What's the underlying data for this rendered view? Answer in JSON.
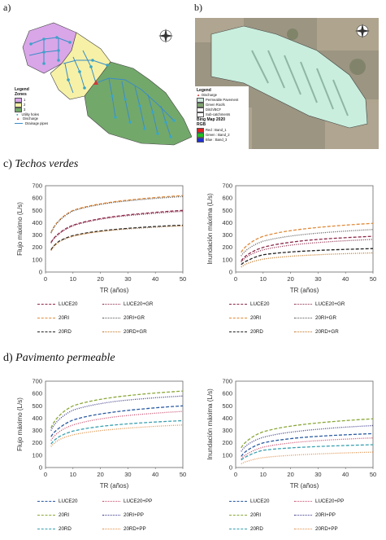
{
  "panels": {
    "a": "a)",
    "b": "b)",
    "c": "c)",
    "c_title": "Techos verdes",
    "d": "d)",
    "d_title": "Pavimento permeable"
  },
  "map_a": {
    "legend_title": "Legend",
    "zones_title": "Zones",
    "zones": [
      {
        "label": "1",
        "color": "#d9a6e8"
      },
      {
        "label": "2",
        "color": "#f6f1a6"
      },
      {
        "label": "3",
        "color": "#73a86b"
      }
    ],
    "utility_holes": "Utility holes",
    "discharge": "Discharge",
    "drainage_pipes": "Drainage pipes"
  },
  "map_b": {
    "legend_title": "Legend",
    "items": [
      {
        "label": "Discharge",
        "color": "#d13a3a"
      },
      {
        "label": "Permeable Pavement",
        "color": "#cfe8df"
      },
      {
        "label": "Green Roofs",
        "color": "#7fa36f"
      },
      {
        "label": "Ditch/BCF",
        "color": "#ffffff"
      },
      {
        "label": "Sub-catchments",
        "color": "#ffffff"
      }
    ],
    "basemap": "Bing Map 2020",
    "rgb_title": "RGB",
    "bands": [
      {
        "label": "Red : Band_1",
        "color": "#e02020"
      },
      {
        "label": "Green : Band_2",
        "color": "#20c020"
      },
      {
        "label": "Blue : Band_3",
        "color": "#2030d0"
      }
    ]
  },
  "chart_data": [
    {
      "type": "line",
      "id": "c-left",
      "xlabel": "TR (años)",
      "ylabel": "Flujo máximo (L/s)",
      "xlim": [
        0,
        50
      ],
      "ylim": [
        0,
        700
      ],
      "xticks": [
        "0",
        "10",
        "20",
        "30",
        "40",
        "50"
      ],
      "yticks": [
        "0",
        "100",
        "200",
        "300",
        "400",
        "500",
        "600",
        "700"
      ],
      "x": [
        2,
        5,
        10,
        25,
        50
      ],
      "series": [
        {
          "name": "LUCE20",
          "color": "#8b2a4a",
          "dash": "4,2",
          "values": [
            240,
            315,
            380,
            450,
            500
          ]
        },
        {
          "name": "LUCE20+GR",
          "color": "#8b2a4a",
          "dash": "1,1.5",
          "values": [
            235,
            310,
            375,
            445,
            492
          ]
        },
        {
          "name": "20RI",
          "color": "#e08a3a",
          "dash": "4,2",
          "values": [
            320,
            420,
            500,
            570,
            620
          ]
        },
        {
          "name": "20RI+GR",
          "color": "#555555",
          "dash": "1,1.5",
          "values": [
            315,
            415,
            495,
            565,
            612
          ]
        },
        {
          "name": "20RD",
          "color": "#222222",
          "dash": "4,2",
          "values": [
            180,
            250,
            295,
            345,
            380
          ]
        },
        {
          "name": "20RD+GR",
          "color": "#c0741f",
          "dash": "1,1.5",
          "values": [
            175,
            245,
            290,
            340,
            375
          ]
        }
      ]
    },
    {
      "type": "line",
      "id": "c-right",
      "xlabel": "TR (años)",
      "ylabel": "Inundación máxima (L/s)",
      "xlim": [
        0,
        50
      ],
      "ylim": [
        0,
        700
      ],
      "xticks": [
        "0",
        "10",
        "20",
        "30",
        "40",
        "50"
      ],
      "yticks": [
        "0",
        "100",
        "200",
        "300",
        "400",
        "500",
        "600",
        "700"
      ],
      "x": [
        2,
        5,
        10,
        25,
        50
      ],
      "series": [
        {
          "name": "LUCE20",
          "color": "#8b2a4a",
          "dash": "4,2",
          "values": [
            90,
            150,
            200,
            255,
            290
          ]
        },
        {
          "name": "LUCE20+GR",
          "color": "#8b2a4a",
          "dash": "1,1.5",
          "values": [
            80,
            135,
            180,
            230,
            265
          ]
        },
        {
          "name": "20RI",
          "color": "#e08a3a",
          "dash": "4,2",
          "values": [
            160,
            230,
            290,
            350,
            395
          ]
        },
        {
          "name": "20RI+GR",
          "color": "#555555",
          "dash": "1,1.5",
          "values": [
            130,
            195,
            250,
            305,
            345
          ]
        },
        {
          "name": "20RD",
          "color": "#222222",
          "dash": "4,2",
          "values": [
            60,
            100,
            140,
            170,
            190
          ]
        },
        {
          "name": "20RD+GR",
          "color": "#c0741f",
          "dash": "1,1.5",
          "values": [
            40,
            75,
            105,
            135,
            155
          ]
        }
      ]
    },
    {
      "type": "line",
      "id": "d-left",
      "xlabel": "TR (años)",
      "ylabel": "Flujo máximo (L/s)",
      "xlim": [
        0,
        50
      ],
      "ylim": [
        0,
        700
      ],
      "xticks": [
        "0",
        "10",
        "20",
        "30",
        "40",
        "50"
      ],
      "yticks": [
        "0",
        "100",
        "200",
        "300",
        "400",
        "500",
        "600",
        "700"
      ],
      "x": [
        2,
        5,
        10,
        25,
        50
      ],
      "series": [
        {
          "name": "LUCE20",
          "color": "#2a5aa0",
          "dash": "4,2",
          "values": [
            250,
            320,
            385,
            450,
            500
          ]
        },
        {
          "name": "LUCE20+PP",
          "color": "#c84a6a",
          "dash": "1,1.5",
          "values": [
            220,
            290,
            345,
            410,
            455
          ]
        },
        {
          "name": "20RI",
          "color": "#8aa83a",
          "dash": "4,2",
          "values": [
            320,
            420,
            500,
            570,
            620
          ]
        },
        {
          "name": "20RI+PP",
          "color": "#3a3a8a",
          "dash": "1,1.5",
          "values": [
            300,
            390,
            465,
            535,
            580
          ]
        },
        {
          "name": "20RD",
          "color": "#3aa0b0",
          "dash": "4,2",
          "values": [
            190,
            250,
            295,
            345,
            380
          ]
        },
        {
          "name": "20RD+PP",
          "color": "#e0904a",
          "dash": "1,1.5",
          "values": [
            170,
            225,
            265,
            310,
            345
          ]
        }
      ]
    },
    {
      "type": "line",
      "id": "d-right",
      "xlabel": "TR (años)",
      "ylabel": "Inundación máxima (L/s)",
      "xlim": [
        0,
        50
      ],
      "ylim": [
        0,
        700
      ],
      "xticks": [
        "0",
        "10",
        "20",
        "30",
        "40",
        "50"
      ],
      "yticks": [
        "0",
        "100",
        "200",
        "300",
        "400",
        "500",
        "600",
        "700"
      ],
      "x": [
        2,
        5,
        10,
        25,
        50
      ],
      "series": [
        {
          "name": "LUCE20",
          "color": "#2a5aa0",
          "dash": "4,2",
          "values": [
            90,
            150,
            200,
            245,
            275
          ]
        },
        {
          "name": "LUCE20+PP",
          "color": "#c84a6a",
          "dash": "1,1.5",
          "values": [
            70,
            120,
            165,
            210,
            240
          ]
        },
        {
          "name": "20RI",
          "color": "#8aa83a",
          "dash": "4,2",
          "values": [
            160,
            230,
            290,
            350,
            395
          ]
        },
        {
          "name": "20RI+PP",
          "color": "#3a3a8a",
          "dash": "1,1.5",
          "values": [
            130,
            195,
            245,
            300,
            340
          ]
        },
        {
          "name": "20RD",
          "color": "#3aa0b0",
          "dash": "4,2",
          "values": [
            60,
            100,
            140,
            165,
            185
          ]
        },
        {
          "name": "20RD+PP",
          "color": "#e0904a",
          "dash": "1,1.5",
          "values": [
            30,
            55,
            80,
            105,
            125
          ]
        }
      ]
    }
  ]
}
